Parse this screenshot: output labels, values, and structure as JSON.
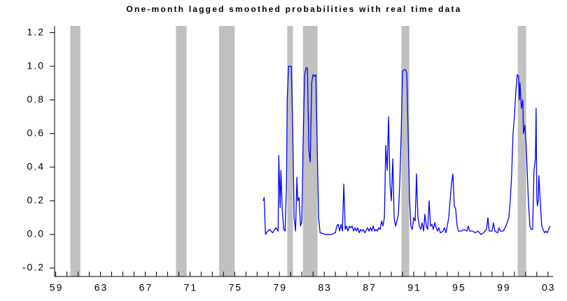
{
  "chart_data": {
    "type": "line",
    "title": "One-month lagged smoothed probabilities with real time data",
    "color": "#0000ff",
    "shade_color": "#c0c0c0",
    "shaded_periods": [
      [
        1960.3,
        1961.2
      ],
      [
        1969.75,
        1970.7
      ],
      [
        1973.6,
        1975.0
      ],
      [
        1979.7,
        1980.2
      ],
      [
        1981.1,
        1982.4
      ],
      [
        1989.9,
        1990.6
      ],
      [
        2000.3,
        2001.05
      ]
    ],
    "x": [
      1977.56,
      1977.63,
      1977.75,
      1977.94,
      1978.13,
      1978.38,
      1978.69,
      1978.88,
      1978.94,
      1979.06,
      1979.13,
      1979.25,
      1979.38,
      1979.5,
      1979.63,
      1979.69,
      1979.81,
      1980.06,
      1980.19,
      1980.31,
      1980.44,
      1980.56,
      1980.63,
      1980.75,
      1980.88,
      1981.0,
      1981.13,
      1981.25,
      1981.38,
      1981.5,
      1981.63,
      1981.75,
      1981.88,
      1982.0,
      1982.13,
      1982.25,
      1982.38,
      1982.5,
      1982.63,
      1983.13,
      1983.63,
      1984.0,
      1984.13,
      1984.25,
      1984.38,
      1984.5,
      1984.63,
      1984.75,
      1984.88,
      1985.0,
      1985.13,
      1985.25,
      1985.38,
      1985.5,
      1985.63,
      1985.75,
      1985.88,
      1986.0,
      1986.13,
      1986.25,
      1986.38,
      1986.5,
      1986.63,
      1986.88,
      1987.0,
      1987.13,
      1987.25,
      1987.38,
      1987.5,
      1987.63,
      1987.75,
      1987.88,
      1988.0,
      1988.13,
      1988.25,
      1988.38,
      1988.5,
      1988.63,
      1988.75,
      1988.88,
      1989.0,
      1989.13,
      1989.25,
      1989.38,
      1989.5,
      1989.63,
      1989.75,
      1989.88,
      1990.0,
      1990.13,
      1990.25,
      1990.38,
      1990.5,
      1990.63,
      1990.75,
      1990.88,
      1991.0,
      1991.13,
      1991.25,
      1991.31,
      1991.38,
      1991.5,
      1991.63,
      1991.75,
      1991.88,
      1992.0,
      1992.13,
      1992.25,
      1992.38,
      1992.5,
      1992.63,
      1992.75,
      1992.88,
      1993.0,
      1993.13,
      1993.25,
      1993.38,
      1993.63,
      1993.75,
      1993.88,
      1994.0,
      1994.13,
      1994.25,
      1994.38,
      1994.5,
      1994.63,
      1994.75,
      1994.88,
      1995.0,
      1995.25,
      1995.5,
      1995.75,
      1995.88,
      1996.0,
      1996.25,
      1996.5,
      1996.75,
      1997.0,
      1997.25,
      1997.5,
      1997.63,
      1997.75,
      1998.0,
      1998.13,
      1998.25,
      1998.5,
      1998.63,
      1998.75,
      1999.0,
      1999.25,
      1999.5,
      1999.63,
      1999.75,
      1999.88,
      2000.0,
      2000.13,
      2000.25,
      2000.38,
      2000.44,
      2000.5,
      2000.63,
      2000.75,
      2000.81,
      2000.94,
      2001.06,
      2001.13,
      2001.25,
      2001.38,
      2001.5,
      2001.63,
      2001.75,
      2001.88,
      2001.94,
      2002.0,
      2002.06,
      2002.13,
      2002.19,
      2002.31,
      2002.44,
      2002.56,
      2002.69,
      2002.81,
      2002.94,
      2003.06,
      2003.19
    ],
    "values": [
      0.2,
      0.22,
      0.0,
      0.02,
      0.03,
      0.01,
      0.04,
      0.02,
      0.47,
      0.16,
      0.38,
      0.15,
      0.03,
      0.02,
      0.3,
      0.8,
      1.0,
      1.0,
      0.6,
      0.1,
      0.02,
      0.34,
      0.2,
      0.22,
      0.05,
      0.08,
      0.6,
      0.95,
      0.99,
      0.99,
      0.5,
      0.43,
      0.9,
      0.95,
      0.94,
      0.95,
      0.5,
      0.1,
      0.01,
      0.0,
      0.0,
      0.01,
      0.05,
      0.06,
      0.02,
      0.06,
      0.02,
      0.3,
      0.03,
      0.05,
      0.02,
      0.05,
      0.04,
      0.05,
      0.02,
      0.04,
      0.02,
      0.04,
      0.01,
      0.03,
      0.02,
      0.03,
      0.01,
      0.04,
      0.02,
      0.04,
      0.02,
      0.05,
      0.02,
      0.03,
      0.02,
      0.04,
      0.03,
      0.08,
      0.05,
      0.1,
      0.53,
      0.38,
      0.7,
      0.3,
      0.2,
      0.45,
      0.1,
      0.05,
      0.08,
      0.12,
      0.3,
      0.6,
      0.97,
      0.98,
      0.98,
      0.96,
      0.6,
      0.2,
      0.05,
      0.03,
      0.1,
      0.08,
      0.36,
      0.22,
      0.1,
      0.05,
      0.03,
      0.07,
      0.02,
      0.12,
      0.05,
      0.03,
      0.2,
      0.05,
      0.06,
      0.03,
      0.07,
      0.04,
      0.02,
      0.04,
      0.01,
      0.02,
      0.04,
      0.01,
      0.05,
      0.1,
      0.2,
      0.3,
      0.36,
      0.17,
      0.15,
      0.05,
      0.02,
      0.02,
      0.03,
      0.02,
      0.05,
      0.02,
      0.02,
      0.01,
      0.02,
      0.0,
      0.01,
      0.03,
      0.1,
      0.02,
      0.02,
      0.07,
      0.02,
      0.01,
      0.04,
      0.02,
      0.02,
      0.05,
      0.1,
      0.2,
      0.35,
      0.6,
      0.7,
      0.85,
      0.95,
      0.94,
      0.8,
      0.9,
      0.75,
      0.8,
      0.6,
      0.65,
      0.52,
      0.4,
      0.2,
      0.05,
      0.03,
      0.03,
      0.38,
      0.45,
      0.75,
      0.22,
      0.17,
      0.2,
      0.35,
      0.2,
      0.05,
      0.03,
      0.01,
      0.02,
      0.01,
      0.03,
      0.05
    ],
    "xlim": [
      1958.9,
      2003.45
    ],
    "ylim": [
      -0.25,
      1.24
    ],
    "yticks": [
      -0.2,
      {
        "value": 0,
        "label": "0.0"
      },
      0.2,
      0.4,
      0.6,
      0.8,
      {
        "value": 1,
        "label": "1.0"
      },
      1.2
    ],
    "xticks": [
      {
        "value": 1959,
        "label": "59"
      },
      {
        "value": 1963,
        "label": "63"
      },
      {
        "value": 1967,
        "label": "67"
      },
      {
        "value": 1971,
        "label": "71"
      },
      {
        "value": 1975,
        "label": "75"
      },
      {
        "value": 1979,
        "label": "79"
      },
      {
        "value": 1983,
        "label": "83"
      },
      {
        "value": 1987,
        "label": "87"
      },
      {
        "value": 1991,
        "label": "91"
      },
      {
        "value": 1995,
        "label": "95"
      },
      {
        "value": 1999,
        "label": "99"
      },
      {
        "value": 2003,
        "label": "03"
      }
    ],
    "x_minor_ticks": [
      1960,
      1961,
      1962,
      1964,
      1965,
      1966,
      1968,
      1969,
      1970,
      1972,
      1973,
      1974,
      1976,
      1977,
      1978,
      1980,
      1981,
      1982,
      1984,
      1985,
      1986,
      1988,
      1989,
      1990,
      1992,
      1993,
      1994,
      1996,
      1997,
      1998,
      2000,
      2001,
      2002
    ]
  }
}
